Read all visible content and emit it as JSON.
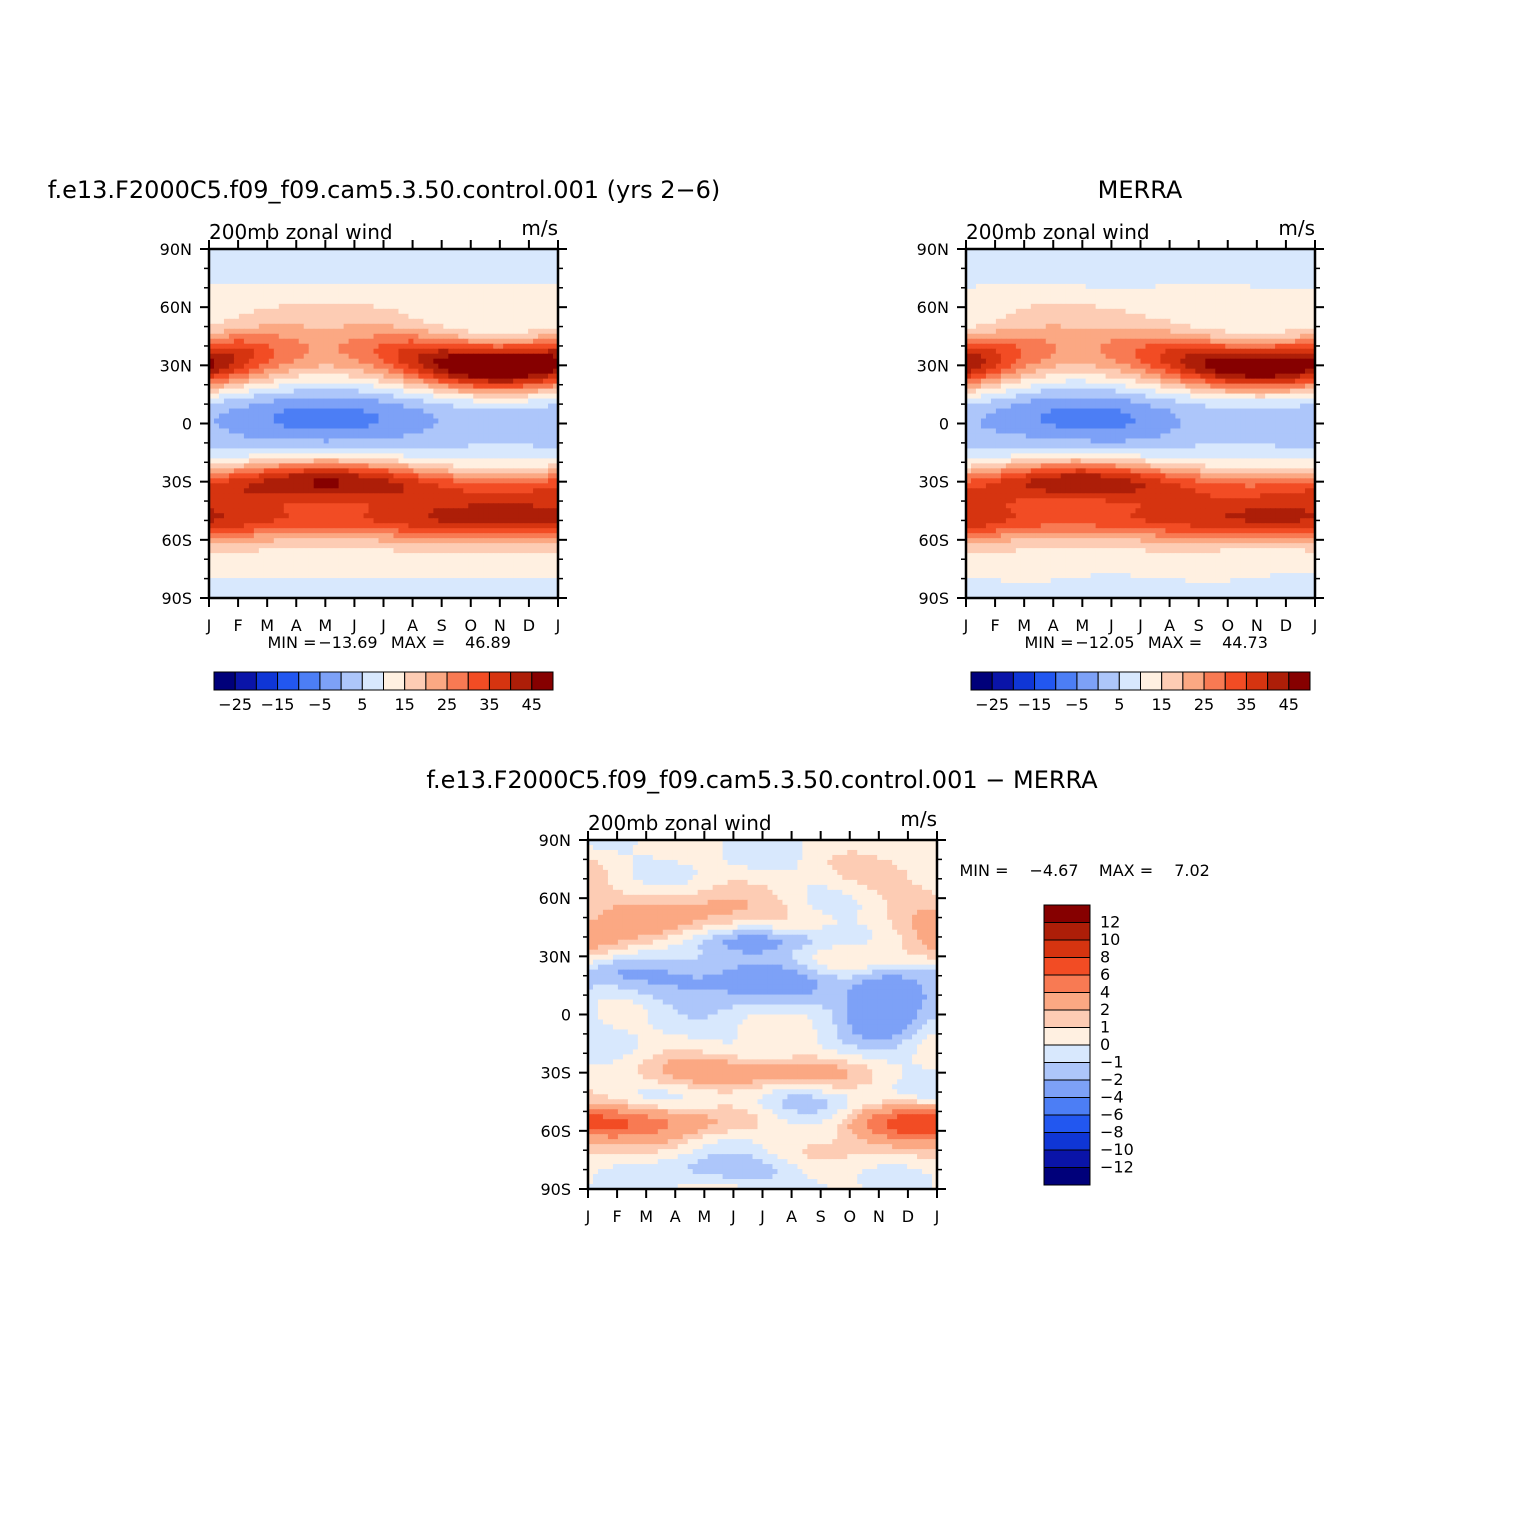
{
  "colors": {
    "abs_palette": [
      "#00007a",
      "#0a14a8",
      "#0f36d6",
      "#2257f0",
      "#4c7ef5",
      "#7da1f7",
      "#adc6fa",
      "#d8e8fd",
      "#fff0e1",
      "#fdccb4",
      "#fba883",
      "#f87a53",
      "#f24c24",
      "#d63410",
      "#ad1e08",
      "#860000"
    ],
    "diff_palette": [
      "#00007a",
      "#0a14a8",
      "#0f36d6",
      "#2257f0",
      "#4c7ef5",
      "#7da1f7",
      "#adc6fa",
      "#d8e8fd",
      "#fff0e1",
      "#fdccb4",
      "#fba883",
      "#f87a53",
      "#f24c24",
      "#d63410",
      "#ad1e08",
      "#860000"
    ]
  },
  "chart_data": [
    {
      "type": "heatmap",
      "id": "model",
      "title": "f.e13.F2000C5.f09_f09.cam5.3.50.control.001 (yrs 2−6)",
      "left_string": "200mb zonal wind",
      "right_string": "m/s",
      "x_ticks": [
        "J",
        "F",
        "M",
        "A",
        "M",
        "J",
        "J",
        "A",
        "S",
        "O",
        "N",
        "D",
        "J"
      ],
      "y_ticks": [
        "90N",
        "60N",
        "30N",
        "0",
        "30S",
        "60S",
        "90S"
      ],
      "ylim": [
        -90,
        90
      ],
      "min_label": "MIN =",
      "min_value": "−13.69",
      "max_label": "MAX =",
      "max_value": "46.89",
      "levels": [
        -30,
        -25,
        -20,
        -15,
        -10,
        -5,
        0,
        5,
        10,
        15,
        20,
        25,
        30,
        35,
        40,
        45
      ],
      "colorbar_labels": [
        "−25",
        "−15",
        "−5",
        "5",
        "15",
        "25",
        "35",
        "45"
      ]
    },
    {
      "type": "heatmap",
      "id": "obs",
      "title": "MERRA",
      "left_string": "200mb zonal wind",
      "right_string": "m/s",
      "x_ticks": [
        "J",
        "F",
        "M",
        "A",
        "M",
        "J",
        "J",
        "A",
        "S",
        "O",
        "N",
        "D",
        "J"
      ],
      "y_ticks": [
        "90N",
        "60N",
        "30N",
        "0",
        "30S",
        "60S",
        "90S"
      ],
      "ylim": [
        -90,
        90
      ],
      "min_label": "MIN =",
      "min_value": "−12.05",
      "max_label": "MAX =",
      "max_value": "44.73",
      "levels": [
        -30,
        -25,
        -20,
        -15,
        -10,
        -5,
        0,
        5,
        10,
        15,
        20,
        25,
        30,
        35,
        40,
        45
      ],
      "colorbar_labels": [
        "−25",
        "−15",
        "−5",
        "5",
        "15",
        "25",
        "35",
        "45"
      ]
    },
    {
      "type": "heatmap",
      "id": "diff",
      "title": "f.e13.F2000C5.f09_f09.cam5.3.50.control.001 − MERRA",
      "left_string": "200mb zonal wind",
      "right_string": "m/s",
      "x_ticks": [
        "J",
        "F",
        "M",
        "A",
        "M",
        "J",
        "J",
        "A",
        "S",
        "O",
        "N",
        "D",
        "J"
      ],
      "y_ticks": [
        "90N",
        "60N",
        "30N",
        "0",
        "30S",
        "60S",
        "90S"
      ],
      "ylim": [
        -90,
        90
      ],
      "min_label": "MIN =",
      "min_value": "−4.67",
      "max_label": "MAX =",
      "max_value": "7.02",
      "levels": [
        -12,
        -10,
        -8,
        -6,
        -4,
        -2,
        -1,
        0,
        1,
        2,
        4,
        6,
        8,
        10,
        12
      ],
      "colorbar_labels": [
        "12",
        "10",
        "8",
        "6",
        "4",
        "2",
        "1",
        "0",
        "−1",
        "−2",
        "−4",
        "−6",
        "−8",
        "−10",
        "−12"
      ]
    }
  ]
}
